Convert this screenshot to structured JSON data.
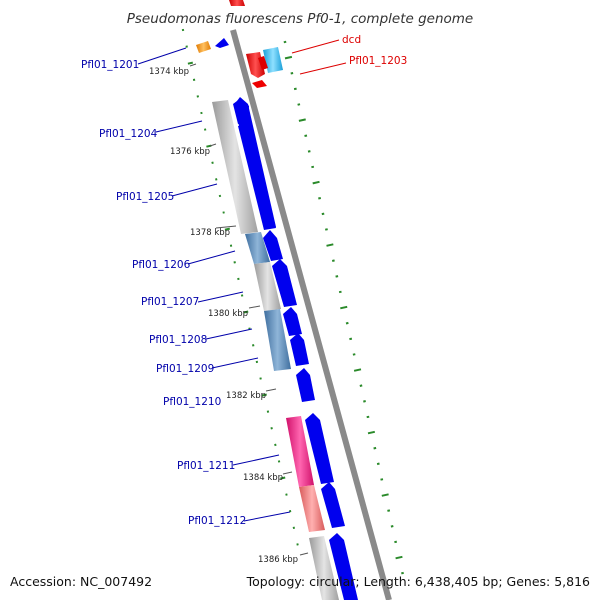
{
  "title": "Pseudomonas fluorescens Pf0-1, complete genome",
  "footer": {
    "accession": "Accession: NC_007492",
    "summary": "Topology: circular; Length: 6,438,405 bp; Genes: 5,816"
  },
  "colors": {
    "backbone": "#8c8c8c",
    "forward_cds": "#0000ee",
    "gene_label": "#0000aa",
    "rna_label": "#dd0000",
    "gc_ticks": "#2a8a2a"
  },
  "gene_labels": [
    {
      "text": "Pfl01_1201",
      "color": "#0000aa"
    },
    {
      "text": "dcd",
      "color": "#dd0000"
    },
    {
      "text": "Pfl01_1203",
      "color": "#dd0000"
    },
    {
      "text": "Pfl01_1204",
      "color": "#0000aa"
    },
    {
      "text": "Pfl01_1205",
      "color": "#0000aa"
    },
    {
      "text": "Pfl01_1206",
      "color": "#0000aa"
    },
    {
      "text": "Pfl01_1207",
      "color": "#0000aa"
    },
    {
      "text": "Pfl01_1208",
      "color": "#0000aa"
    },
    {
      "text": "Pfl01_1209",
      "color": "#0000aa"
    },
    {
      "text": "Pfl01_1210",
      "color": "#0000aa"
    },
    {
      "text": "Pfl01_1211",
      "color": "#0000aa"
    },
    {
      "text": "Pfl01_1212",
      "color": "#0000aa"
    }
  ],
  "position_labels": [
    "1374 kbp",
    "1376 kbp",
    "1378 kbp",
    "1380 kbp",
    "1382 kbp",
    "1384 kbp",
    "1386 kbp"
  ]
}
